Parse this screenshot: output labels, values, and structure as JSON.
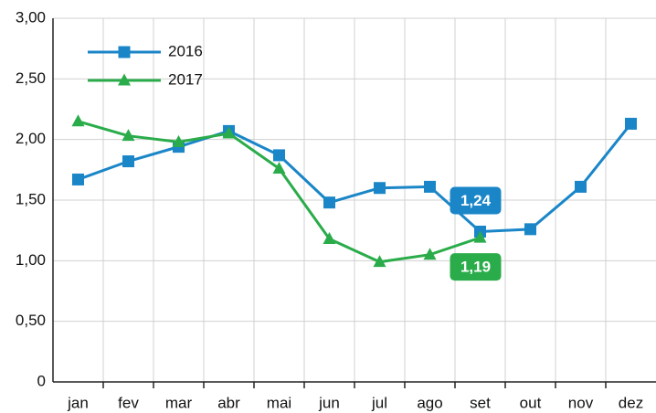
{
  "chart_data": {
    "type": "line",
    "categories": [
      "jan",
      "fev",
      "mar",
      "abr",
      "mai",
      "jun",
      "jul",
      "ago",
      "set",
      "out",
      "nov",
      "dez"
    ],
    "series": [
      {
        "name": "2016",
        "color": "#1a86c8",
        "marker": "square",
        "values": [
          1.67,
          1.82,
          1.94,
          2.07,
          1.87,
          1.48,
          1.6,
          1.61,
          1.24,
          1.26,
          1.61,
          2.13
        ],
        "value_labels": [
          null,
          null,
          null,
          null,
          null,
          null,
          null,
          null,
          "1,24",
          null,
          null,
          null
        ]
      },
      {
        "name": "2017",
        "color": "#2aac4a",
        "marker": "triangle",
        "values": [
          2.15,
          2.03,
          1.98,
          2.05,
          1.76,
          1.18,
          0.99,
          1.05,
          1.19,
          null,
          null,
          null
        ],
        "value_labels": [
          null,
          null,
          null,
          null,
          null,
          null,
          null,
          null,
          "1,19",
          null,
          null,
          null
        ]
      }
    ],
    "ylim": [
      0,
      3
    ],
    "yticks": [
      0,
      {
        "value": 0.5,
        "label": "0,50"
      },
      {
        "value": 1,
        "label": "1,00"
      },
      {
        "value": 1.5,
        "label": "1,50"
      },
      {
        "value": 2,
        "label": "2,00"
      },
      {
        "value": 2.5,
        "label": "2,50"
      },
      {
        "value": 3,
        "label": "3,00"
      }
    ],
    "grid": true,
    "legend": "upper left"
  }
}
